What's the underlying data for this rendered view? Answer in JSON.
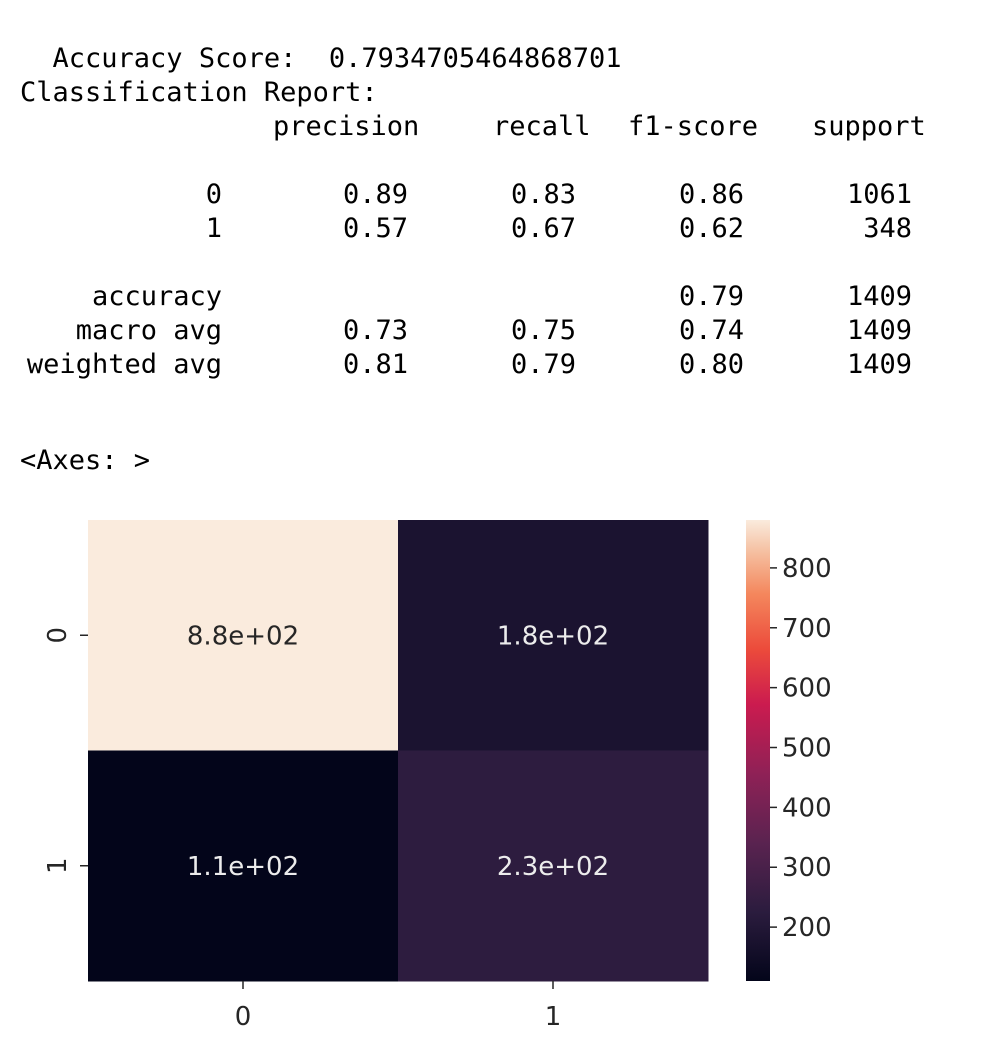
{
  "output": {
    "accuracy_label": "Accuracy Score:",
    "accuracy_value": "0.7934705464868701",
    "report_title": "Classification Report:",
    "report_headers": [
      "precision",
      "recall",
      "f1-score",
      "support"
    ],
    "report_rows": [
      {
        "label": "0",
        "precision": "0.89",
        "recall": "0.83",
        "f1": "0.86",
        "support": "1061"
      },
      {
        "label": "1",
        "precision": "0.57",
        "recall": "0.67",
        "f1": "0.62",
        "support": "348"
      }
    ],
    "report_summary": [
      {
        "label": "accuracy",
        "precision": "",
        "recall": "",
        "f1": "0.79",
        "support": "1409"
      },
      {
        "label": "macro avg",
        "precision": "0.73",
        "recall": "0.75",
        "f1": "0.74",
        "support": "1409"
      },
      {
        "label": "weighted avg",
        "precision": "0.81",
        "recall": "0.79",
        "f1": "0.80",
        "support": "1409"
      }
    ],
    "axes_repr": "<Axes: >"
  },
  "chart_data": {
    "type": "heatmap",
    "x_categories": [
      "0",
      "1"
    ],
    "y_categories": [
      "0",
      "1"
    ],
    "values": [
      [
        880,
        180
      ],
      [
        110,
        230
      ]
    ],
    "annotations": [
      [
        "8.8e+02",
        "1.8e+02"
      ],
      [
        "1.1e+02",
        "2.3e+02"
      ]
    ],
    "colorbar": {
      "range": [
        110,
        880
      ],
      "ticks": [
        200,
        300,
        400,
        500,
        600,
        700,
        800
      ]
    },
    "colormap": "rocket",
    "title": "",
    "xlabel": "",
    "ylabel": ""
  }
}
